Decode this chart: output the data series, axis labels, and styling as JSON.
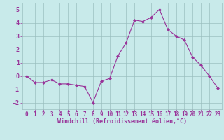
{
  "x": [
    0,
    1,
    2,
    3,
    4,
    5,
    6,
    7,
    8,
    9,
    10,
    11,
    12,
    13,
    14,
    15,
    16,
    17,
    18,
    19,
    20,
    21,
    22,
    23
  ],
  "y": [
    0.0,
    -0.5,
    -0.5,
    -0.3,
    -0.6,
    -0.6,
    -0.7,
    -0.8,
    -2.0,
    -0.4,
    -0.2,
    1.5,
    2.5,
    4.2,
    4.1,
    4.4,
    5.0,
    3.5,
    3.0,
    2.7,
    1.4,
    0.8,
    0.0,
    -0.9
  ],
  "line_color": "#993399",
  "marker": "D",
  "marker_size": 2,
  "bg_color": "#c8eaea",
  "grid_color": "#9bbfbf",
  "xlabel": "Windchill (Refroidissement éolien,°C)",
  "xlabel_fontsize": 6.0,
  "tick_fontsize": 5.5,
  "tick_label_color": "#993399",
  "axis_label_color": "#993399",
  "xlim": [
    -0.5,
    23.5
  ],
  "ylim": [
    -2.5,
    5.5
  ],
  "yticks": [
    -2,
    -1,
    0,
    1,
    2,
    3,
    4,
    5
  ],
  "xticks": [
    0,
    1,
    2,
    3,
    4,
    5,
    6,
    7,
    8,
    9,
    10,
    11,
    12,
    13,
    14,
    15,
    16,
    17,
    18,
    19,
    20,
    21,
    22,
    23
  ]
}
